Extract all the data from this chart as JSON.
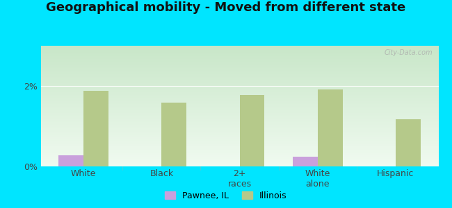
{
  "title": "Geographical mobility - Moved from different state",
  "categories": [
    "White",
    "Black",
    "2+\nraces",
    "White\nalone",
    "Hispanic"
  ],
  "pawnee_values": [
    0.28,
    0.0,
    0.0,
    0.25,
    0.0
  ],
  "illinois_values": [
    1.88,
    1.58,
    1.78,
    1.92,
    1.18
  ],
  "pawnee_color": "#c9a0dc",
  "illinois_color": "#b5c98a",
  "ylim": [
    0,
    3.0
  ],
  "yticks": [
    0,
    2
  ],
  "ytick_labels": [
    "0%",
    "2%"
  ],
  "outer_bg": "#00e5ff",
  "bar_width": 0.32,
  "title_fontsize": 13,
  "tick_fontsize": 9,
  "legend_fontsize": 9,
  "grad_top": "#c8e6c8",
  "grad_bottom": "#f0faf0"
}
